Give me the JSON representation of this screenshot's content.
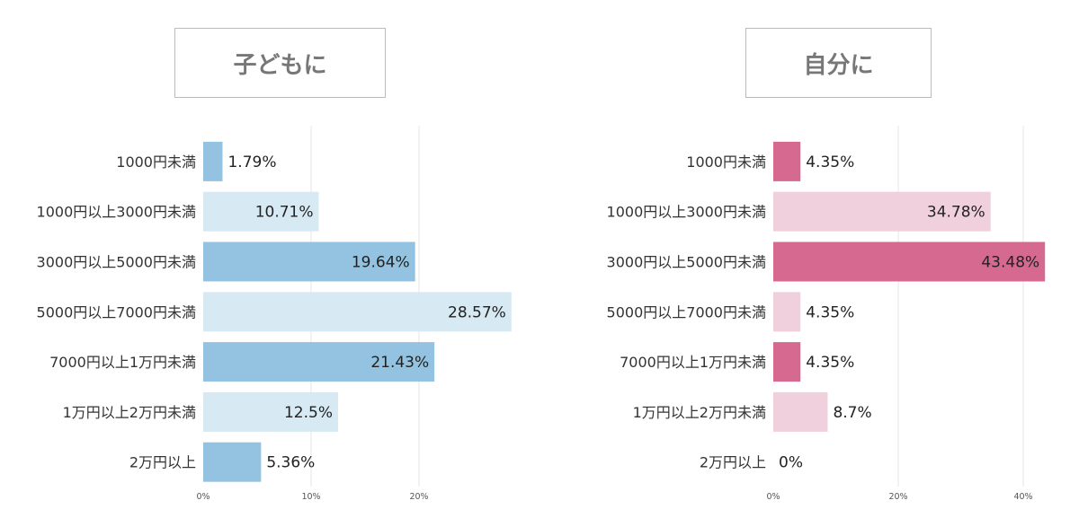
{
  "chart_data": [
    {
      "type": "bar",
      "orientation": "horizontal",
      "title": "子どもに",
      "categories": [
        "1000円未満",
        "1000円以上3000円未満",
        "3000円以上5000円未満",
        "5000円以上7000円未満",
        "7000円以上1万円未満",
        "1万円以上2万円未満",
        "2万円以上"
      ],
      "values": [
        1.79,
        10.71,
        19.64,
        28.57,
        21.43,
        12.5,
        5.36
      ],
      "value_labels": [
        "1.79%",
        "10.71%",
        "19.64%",
        "28.57%",
        "21.43%",
        "12.5%",
        "5.36%"
      ],
      "xticks": [
        "0%",
        "10%",
        "20%"
      ],
      "xlim": [
        0,
        30
      ],
      "grid": true,
      "colors": {
        "dark": "#93c3e0",
        "light": "#d7e9f3",
        "grid": "#e4e4e4"
      }
    },
    {
      "type": "bar",
      "orientation": "horizontal",
      "title": "自分に",
      "categories": [
        "1000円未満",
        "1000円以上3000円未満",
        "3000円以上5000円未満",
        "5000円以上7000円未満",
        "7000円以上1万円未満",
        "1万円以上2万円未満",
        "2万円以上"
      ],
      "values": [
        4.35,
        34.78,
        43.48,
        4.35,
        4.35,
        8.7,
        0
      ],
      "value_labels": [
        "4.35%",
        "34.78%",
        "43.48%",
        "4.35%",
        "4.35%",
        "8.7%",
        "0%"
      ],
      "xticks": [
        "0%",
        "20%",
        "40%"
      ],
      "xlim": [
        0,
        45
      ],
      "grid": true,
      "colors": {
        "dark": "#d6698f",
        "light": "#f0d0dd",
        "grid": "#e4e4e4"
      }
    }
  ]
}
